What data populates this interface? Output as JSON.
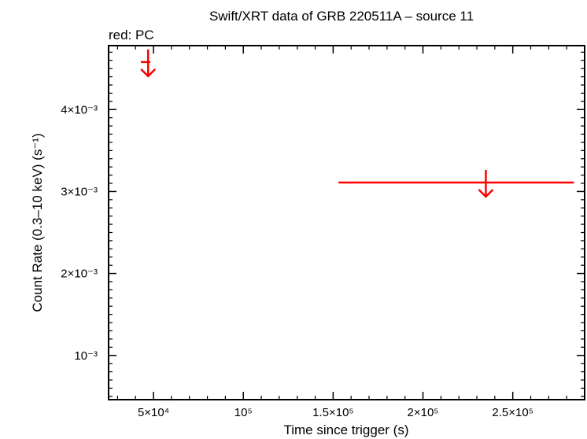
{
  "chart_data": {
    "type": "scatter",
    "title": "Swift/XRT data of GRB 220511A – source 11",
    "subtitle": "red: PC",
    "xlabel": "Time since trigger (s)",
    "ylabel": "Count Rate (0.3–10 keV) (s⁻¹)",
    "xlim": [
      25000,
      290000
    ],
    "ylim": [
      0.00046,
      0.00478
    ],
    "grid": false,
    "x_ticks": [
      {
        "value": 50000,
        "label": "5×10⁴"
      },
      {
        "value": 100000,
        "label": "10⁵"
      },
      {
        "value": 150000,
        "label": "1.5×10⁵"
      },
      {
        "value": 200000,
        "label": "2×10⁵"
      },
      {
        "value": 250000,
        "label": "2.5×10⁵"
      }
    ],
    "y_ticks": [
      {
        "value": 0.001,
        "label": "10⁻³"
      },
      {
        "value": 0.002,
        "label": "2×10⁻³"
      },
      {
        "value": 0.003,
        "label": "3×10⁻³"
      },
      {
        "value": 0.004,
        "label": "4×10⁻³"
      }
    ],
    "series": [
      {
        "name": "PC",
        "color": "#ff0000",
        "kind": "upper_limit",
        "points": [
          {
            "x": 47000,
            "xerr_low": 4000,
            "xerr_high": 1200,
            "y": 0.00458
          },
          {
            "x": 235000,
            "xerr_low": 82000,
            "xerr_high": 49000,
            "y": 0.00311
          }
        ]
      }
    ]
  }
}
